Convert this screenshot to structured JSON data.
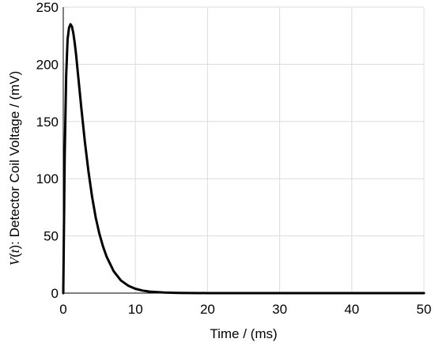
{
  "chart_data": {
    "type": "line",
    "title": "",
    "xlabel": "Time / (ms)",
    "ylabel": {
      "symbol": "V",
      "paren_open": "(",
      "var": "t",
      "paren_close": ")",
      "rest": ": Detector Coil Voltage / (mV)"
    },
    "xlim": [
      0,
      50
    ],
    "ylim": [
      0,
      250
    ],
    "xticks": [
      0,
      10,
      20,
      30,
      40,
      50
    ],
    "yticks": [
      0,
      50,
      100,
      150,
      200,
      250
    ],
    "grid": true,
    "series": [
      {
        "x": [
          0,
          0.2,
          0.4,
          0.6,
          0.8,
          1.0,
          1.2,
          1.4,
          1.6,
          1.8,
          2.0,
          2.5,
          3.0,
          3.5,
          4.0,
          4.5,
          5.0,
          5.5,
          6.0,
          7.0,
          8.0,
          9.0,
          10.0,
          11.0,
          12.0,
          14.0,
          16.0,
          20.0,
          25.0,
          30.0,
          40.0,
          50.0
        ],
        "y": [
          0,
          120,
          190,
          222,
          232,
          235,
          233,
          227,
          218,
          207,
          194,
          162,
          132,
          106,
          84,
          66,
          52,
          41,
          32,
          19,
          11,
          6.5,
          3.8,
          2.2,
          1.3,
          0.5,
          0.2,
          0,
          0,
          0,
          0,
          0
        ]
      }
    ],
    "colors": {
      "line": "#000000",
      "grid": "#dcdcdc",
      "axis": "#000000"
    }
  }
}
